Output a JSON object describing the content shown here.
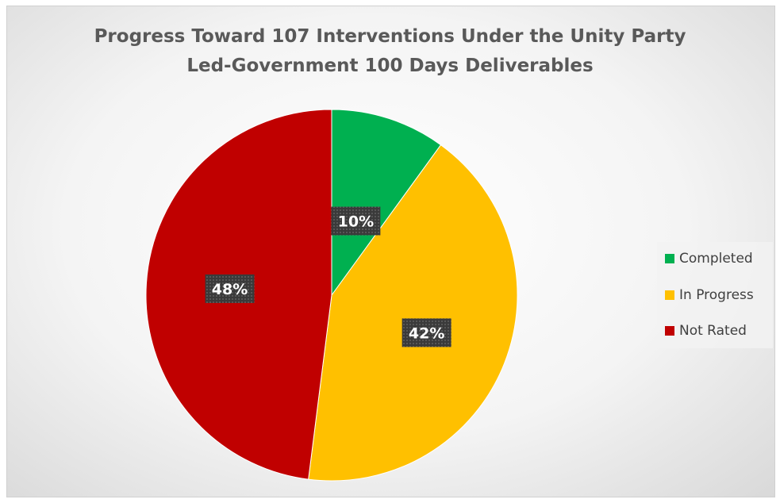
{
  "chart_data": {
    "type": "pie",
    "title": "Progress Toward 107 Interventions Under the Unity Party Led-Government 100 Days Deliverables",
    "title_lines": [
      "Progress Toward 107 Interventions Under the Unity Party",
      "Led-Government 100 Days Deliverables"
    ],
    "categories": [
      "Completed",
      "In Progress",
      "Not Rated"
    ],
    "values": [
      10,
      42,
      48
    ],
    "labels": [
      "10%",
      "42%",
      "48%"
    ],
    "colors": [
      "#00b050",
      "#ffc000",
      "#c00000"
    ],
    "legend_position": "right",
    "start_angle": "top, clockwise"
  }
}
